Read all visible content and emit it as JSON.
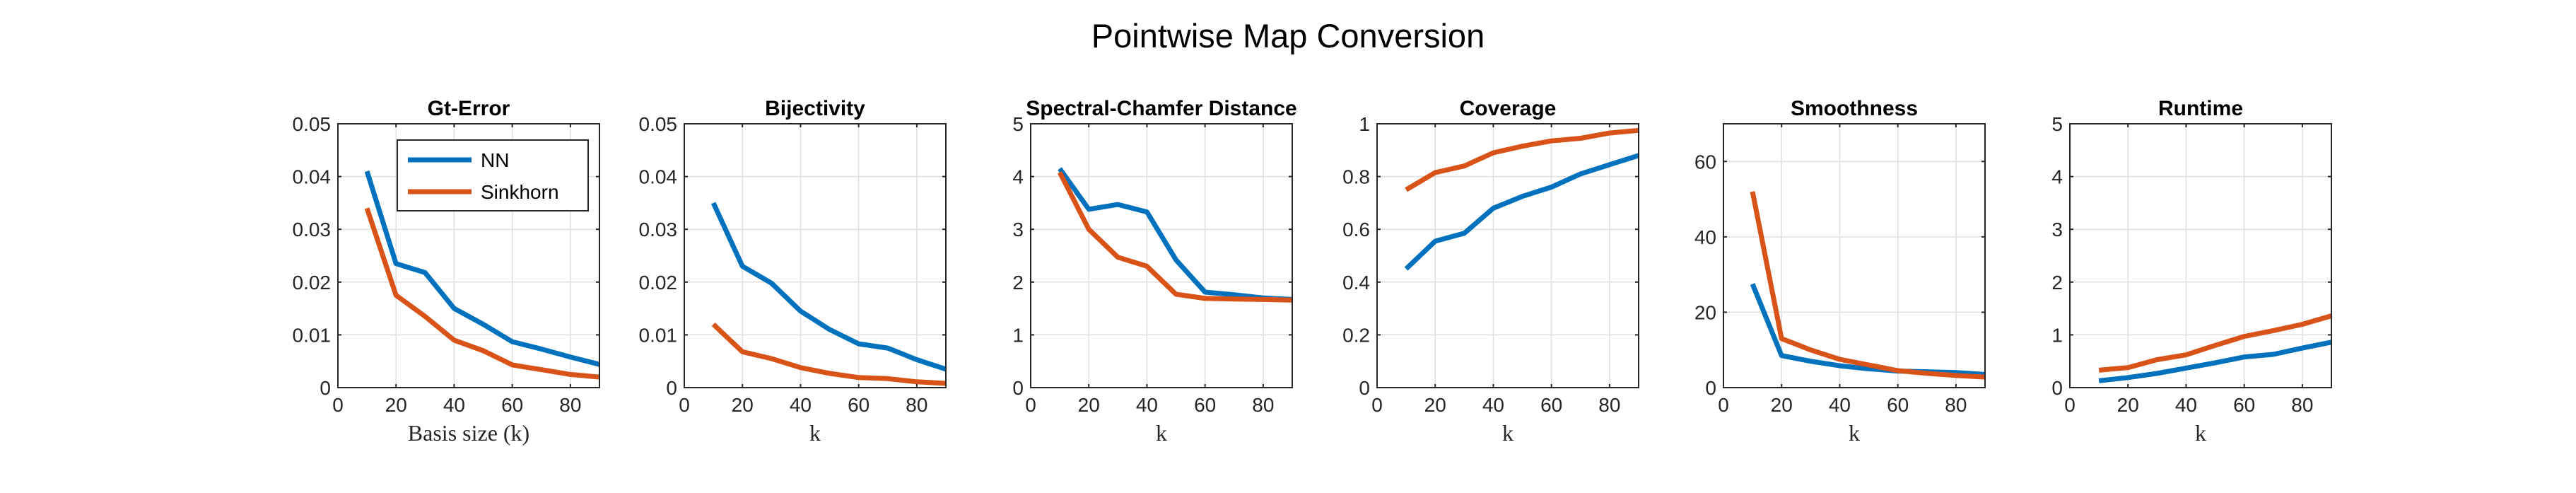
{
  "title": "Pointwise Map Conversion",
  "colors": {
    "NN": "#0072BD",
    "Sinkhorn": "#D95319"
  },
  "legend": {
    "entries": [
      "NN",
      "Sinkhorn"
    ],
    "location": "top-right"
  },
  "chart_data": [
    {
      "type": "line",
      "title": "Gt-Error",
      "xlabel": "Basis size (k)",
      "xlim": [
        0,
        90
      ],
      "ylim": [
        0,
        0.05
      ],
      "xticks": [
        "0",
        "20",
        "40",
        "60",
        "80"
      ],
      "yticks": [
        "0",
        "0.01",
        "0.02",
        "0.03",
        "0.04",
        "0.05"
      ],
      "grid": true,
      "x": [
        10,
        20,
        30,
        40,
        50,
        60,
        70,
        80,
        90
      ],
      "series": [
        {
          "name": "NN",
          "values": [
            0.041,
            0.0235,
            0.0218,
            0.015,
            0.012,
            0.0087,
            0.0073,
            0.0058,
            0.0044
          ]
        },
        {
          "name": "Sinkhorn",
          "values": [
            0.034,
            0.0175,
            0.0135,
            0.009,
            0.007,
            0.0043,
            0.0034,
            0.0025,
            0.002
          ]
        }
      ]
    },
    {
      "type": "line",
      "title": "Bijectivity",
      "xlabel": "k",
      "xlim": [
        0,
        90
      ],
      "ylim": [
        0,
        0.05
      ],
      "xticks": [
        "0",
        "20",
        "40",
        "60",
        "80"
      ],
      "yticks": [
        "0",
        "0.01",
        "0.02",
        "0.03",
        "0.04",
        "0.05"
      ],
      "grid": true,
      "x": [
        10,
        20,
        30,
        40,
        50,
        60,
        70,
        80,
        90
      ],
      "series": [
        {
          "name": "NN",
          "values": [
            0.035,
            0.023,
            0.0198,
            0.0145,
            0.011,
            0.0083,
            0.0075,
            0.0053,
            0.0035
          ]
        },
        {
          "name": "Sinkhorn",
          "values": [
            0.012,
            0.0068,
            0.0055,
            0.0038,
            0.0027,
            0.0019,
            0.0017,
            0.0011,
            0.0008
          ]
        }
      ]
    },
    {
      "type": "line",
      "title": "Spectral-Chamfer Distance",
      "xlabel": "k",
      "xlim": [
        0,
        90
      ],
      "ylim": [
        0,
        5
      ],
      "xticks": [
        "0",
        "20",
        "40",
        "60",
        "80"
      ],
      "yticks": [
        "0",
        "1",
        "2",
        "3",
        "4",
        "5"
      ],
      "grid": true,
      "x": [
        10,
        20,
        30,
        40,
        50,
        60,
        70,
        80,
        90
      ],
      "series": [
        {
          "name": "NN",
          "values": [
            4.15,
            3.38,
            3.47,
            3.33,
            2.42,
            1.81,
            1.76,
            1.7,
            1.67
          ]
        },
        {
          "name": "Sinkhorn",
          "values": [
            4.08,
            3.0,
            2.47,
            2.3,
            1.77,
            1.69,
            1.68,
            1.67,
            1.66
          ]
        }
      ]
    },
    {
      "type": "line",
      "title": "Coverage",
      "xlabel": "k",
      "xlim": [
        0,
        90
      ],
      "ylim": [
        0,
        1
      ],
      "xticks": [
        "0",
        "20",
        "40",
        "60",
        "80"
      ],
      "yticks": [
        "0",
        "0.2",
        "0.4",
        "0.6",
        "0.8",
        "1"
      ],
      "grid": true,
      "x": [
        10,
        20,
        30,
        40,
        50,
        60,
        70,
        80,
        90
      ],
      "series": [
        {
          "name": "NN",
          "values": [
            0.45,
            0.555,
            0.585,
            0.68,
            0.725,
            0.76,
            0.81,
            0.845,
            0.88
          ]
        },
        {
          "name": "Sinkhorn",
          "values": [
            0.75,
            0.815,
            0.84,
            0.89,
            0.915,
            0.935,
            0.945,
            0.965,
            0.975
          ]
        }
      ]
    },
    {
      "type": "line",
      "title": "Smoothness",
      "xlabel": "k",
      "xlim": [
        0,
        90
      ],
      "ylim": [
        0,
        70
      ],
      "xticks": [
        "0",
        "20",
        "40",
        "60",
        "80"
      ],
      "yticks": [
        "0",
        "20",
        "40",
        "60"
      ],
      "ytick_values": [
        0,
        20,
        40,
        60
      ],
      "grid": true,
      "x": [
        10,
        20,
        30,
        40,
        50,
        60,
        70,
        80,
        90
      ],
      "series": [
        {
          "name": "NN",
          "values": [
            27.5,
            8.5,
            7.0,
            5.8,
            5.0,
            4.4,
            4.2,
            4.0,
            3.5
          ]
        },
        {
          "name": "Sinkhorn",
          "values": [
            52.0,
            13.0,
            10.0,
            7.5,
            6.0,
            4.5,
            3.8,
            3.2,
            2.8
          ]
        }
      ]
    },
    {
      "type": "line",
      "title": "Runtime",
      "xlabel": "k",
      "xlim": [
        0,
        90
      ],
      "ylim": [
        0,
        5
      ],
      "xticks": [
        "0",
        "20",
        "40",
        "60",
        "80"
      ],
      "yticks": [
        "0",
        "1",
        "2",
        "3",
        "4",
        "5"
      ],
      "grid": true,
      "x": [
        10,
        20,
        30,
        40,
        50,
        60,
        70,
        80,
        90
      ],
      "series": [
        {
          "name": "NN",
          "values": [
            0.13,
            0.19,
            0.27,
            0.37,
            0.47,
            0.58,
            0.63,
            0.75,
            0.86
          ]
        },
        {
          "name": "Sinkhorn",
          "values": [
            0.33,
            0.38,
            0.53,
            0.62,
            0.8,
            0.97,
            1.08,
            1.2,
            1.36
          ]
        }
      ]
    }
  ]
}
